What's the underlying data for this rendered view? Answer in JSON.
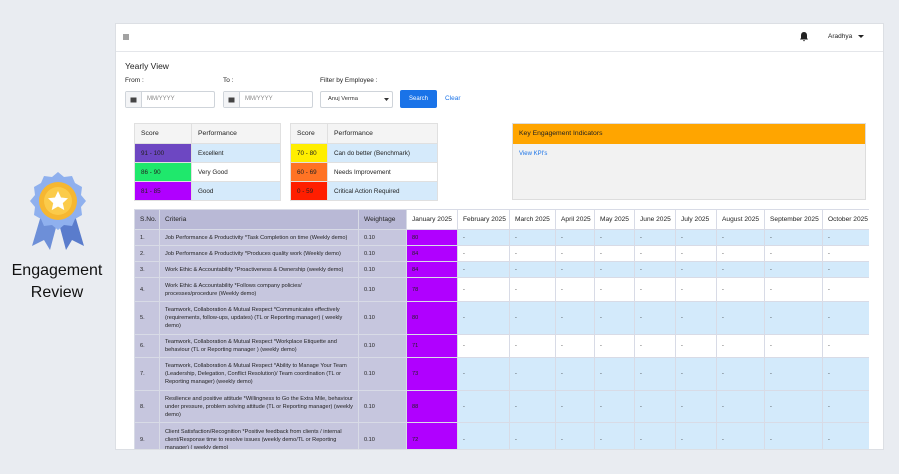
{
  "sidebar": {
    "title": "Engagement Review"
  },
  "topbar": {
    "user": "Aradhya"
  },
  "page": {
    "title": "Yearly View"
  },
  "filters": {
    "from_label": "From :",
    "from_placeholder": "MM/YYYY",
    "to_label": "To :",
    "to_placeholder": "MM/YYYY",
    "employee_label": "Filter by Employee :",
    "employee": "Anuj Verma",
    "search": "Search",
    "clear": "Clear"
  },
  "legend": [
    {
      "header": [
        "Score",
        "Performance"
      ],
      "rows": [
        {
          "score": "91 - 100",
          "performance": "Excellent",
          "color": "#6d47c2",
          "fill": "#d5eafb"
        },
        {
          "score": "86 - 90",
          "performance": "Very Good",
          "color": "#1fe86c",
          "fill": "#ffffff"
        },
        {
          "score": "81 - 85",
          "performance": "Good",
          "color": "#b000ff",
          "fill": "#d5eafb"
        }
      ]
    },
    {
      "header": [
        "Score",
        "Performance"
      ],
      "rows": [
        {
          "score": "70 - 80",
          "performance": "Can do better (Benchmark)",
          "color": "#ffee00",
          "fill": "#d5eafb"
        },
        {
          "score": "60 - 69",
          "performance": "Needs Improvement",
          "color": "#ff7324",
          "fill": "#ffffff"
        },
        {
          "score": "0 - 59",
          "performance": "Critical Action Required",
          "color": "#ff1e00",
          "fill": "#d5eafb"
        }
      ]
    }
  ],
  "kpi": {
    "title": "Key Engagement Indicators",
    "link": "View KPI's"
  },
  "table": {
    "columns": [
      "S.No.",
      "Criteria",
      "Weightage",
      "January 2025",
      "February 2025",
      "March 2025",
      "April 2025",
      "May 2025",
      "June 2025",
      "July 2025",
      "August 2025",
      "September 2025",
      "October 2025"
    ],
    "rows": [
      {
        "sno": "1.",
        "criteria": "Job Performance & Productivity *Task Completion on time (Weekly demo)",
        "weightage": "0.10",
        "months": [
          "80",
          "-",
          "-",
          "-",
          "-",
          "-",
          "-",
          "-",
          "-",
          "-"
        ]
      },
      {
        "sno": "2.",
        "criteria": "Job Performance & Productivity *Produces quality work (Weekly demo)",
        "weightage": "0.10",
        "months": [
          "84",
          "-",
          "-",
          "-",
          "-",
          "-",
          "-",
          "-",
          "-",
          "-"
        ]
      },
      {
        "sno": "3.",
        "criteria": "Work Ethic & Accountability *Proactiveness & Ownership (weekly demo)",
        "weightage": "0.10",
        "months": [
          "84",
          "-",
          "-",
          "-",
          "-",
          "-",
          "-",
          "-",
          "-",
          "-"
        ]
      },
      {
        "sno": "4.",
        "criteria": "Work Ethic & Accountability *Follows company policies/ processes/procedure (Weekly demo)",
        "weightage": "0.10",
        "months": [
          "78",
          "-",
          "-",
          "-",
          "-",
          "-",
          "-",
          "-",
          "-",
          "-"
        ]
      },
      {
        "sno": "5.",
        "criteria": "Teamwork, Collaboration & Mutual Respect *Communicates effectively (requirements, follow-ups, updates) (TL or Reporting manager) ( weekly demo)",
        "weightage": "0.10",
        "months": [
          "80",
          "-",
          "-",
          "-",
          "-",
          "-",
          "-",
          "-",
          "-",
          "-"
        ]
      },
      {
        "sno": "6.",
        "criteria": "Teamwork, Collaboration & Mutual Respect *Workplace Etiquette and behaviour (TL or Reporting manager ) (weekly demo)",
        "weightage": "0.10",
        "months": [
          "71",
          "-",
          "-",
          "-",
          "-",
          "-",
          "-",
          "-",
          "-",
          "-"
        ]
      },
      {
        "sno": "7.",
        "criteria": "Teamwork, Collaboration & Mutual Respect *Ability to Manage Your Team (Leadership, Delegation, Conflict Resolution)/ Team coordination (TL or Reporting manager) (weekly demo)",
        "weightage": "0.10",
        "months": [
          "73",
          "-",
          "-",
          "-",
          "-",
          "-",
          "-",
          "-",
          "-",
          "-"
        ]
      },
      {
        "sno": "8.",
        "criteria": "Resilience and positive attitude *Willingness to Go the Extra Mile, behaviour under pressure, problem solving attitude (TL or Reporting manager) (weekly demo)",
        "weightage": "0.10",
        "months": [
          "88",
          "-",
          "-",
          "-",
          "-",
          "-",
          "-",
          "-",
          "-",
          "-"
        ]
      },
      {
        "sno": "9.",
        "criteria": "Client Satisfaction/Recognition *Positive feedback from clients / internal client/Response time to resolve issues (weekly demo/TL or Reporting manager) ( weekly demo)",
        "weightage": "0.10",
        "months": [
          "72",
          "-",
          "-",
          "-",
          "-",
          "-",
          "-",
          "-",
          "-",
          "-"
        ]
      }
    ]
  }
}
